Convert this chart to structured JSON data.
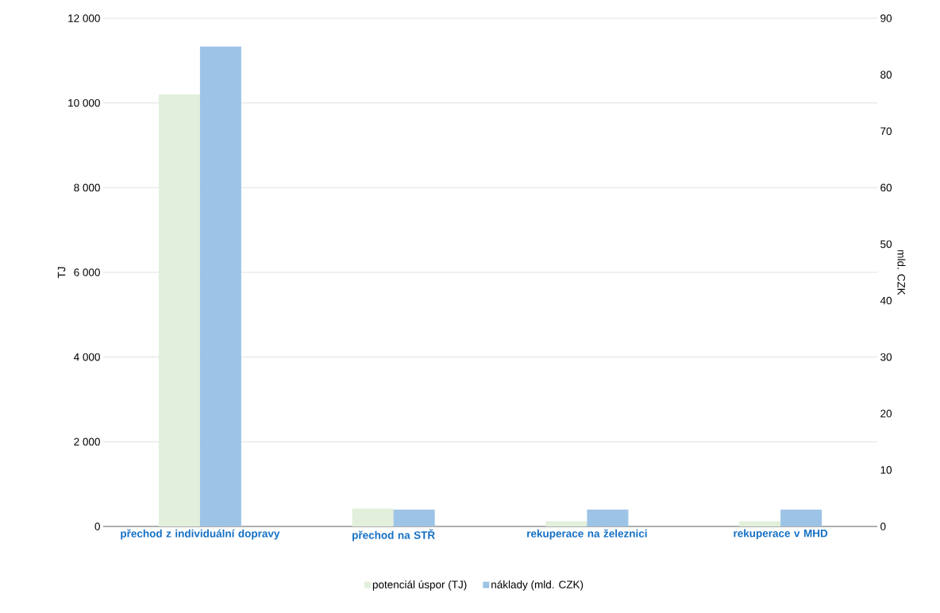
{
  "chart_data": {
    "type": "bar",
    "categories": [
      "přechod z individuální dopravy",
      "přechod na STŘ",
      "rekuperace na železnici",
      "rekuperace v MHD"
    ],
    "series": [
      {
        "name": "potenciál úspor (TJ)",
        "color": "#e2efda",
        "values": [
          10200,
          420,
          120,
          120
        ]
      },
      {
        "name": "náklady (mld. CZK)",
        "color": "#9dc3e6",
        "values": [
          85,
          3,
          3,
          3
        ],
        "axis": "y2"
      }
    ],
    "ylabel": "TJ",
    "y2label": "mld. CZK",
    "ylim": [
      0,
      12000
    ],
    "yticks": [
      0,
      {
        "value": 2000,
        "label": "2 000"
      },
      {
        "value": 4000,
        "label": "4 000"
      },
      {
        "value": 6000,
        "label": "6 000"
      },
      {
        "value": 8000,
        "label": "8 000"
      },
      {
        "value": 10000,
        "label": "10 000"
      },
      {
        "value": 12000,
        "label": "12 000"
      }
    ],
    "y2lim": [
      0,
      90
    ],
    "y2ticks": [
      0,
      10,
      20,
      30,
      40,
      50,
      60,
      70,
      80,
      90
    ],
    "grid": "y",
    "legend": "bottom"
  }
}
